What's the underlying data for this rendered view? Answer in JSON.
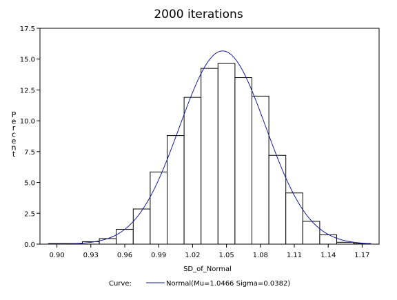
{
  "chart_data": {
    "type": "bar",
    "title": "2000 iterations",
    "xlabel": "SD_of_Normal",
    "ylabel": "Percent",
    "xlim": [
      0.885,
      1.185
    ],
    "ylim": [
      0,
      17.5
    ],
    "x_ticks": [
      "0.90",
      "0.93",
      "0.96",
      "0.99",
      "1.02",
      "1.05",
      "1.08",
      "1.11",
      "1.14",
      "1.17"
    ],
    "y_ticks": [
      "0.0",
      "2.5",
      "5.0",
      "7.5",
      "10.0",
      "12.5",
      "15.0",
      "17.5"
    ],
    "bin_width": 0.015,
    "bin_centers": [
      0.9,
      0.915,
      0.93,
      0.945,
      0.96,
      0.975,
      0.99,
      1.005,
      1.02,
      1.035,
      1.05,
      1.065,
      1.08,
      1.095,
      1.11,
      1.125,
      1.14,
      1.155,
      1.17
    ],
    "values": [
      0.05,
      0.05,
      0.2,
      0.45,
      1.2,
      2.85,
      5.85,
      8.8,
      11.9,
      14.25,
      14.65,
      13.5,
      12.0,
      7.2,
      4.15,
      1.85,
      0.75,
      0.15,
      0.05
    ],
    "series": [
      {
        "name": "Normal(Mu=1.0466 Sigma=0.0382)",
        "type": "curve",
        "mu": 1.0466,
        "sigma": 0.0382,
        "color": "#1a1a9c"
      }
    ],
    "legend": {
      "label": "Curve:",
      "entry": "Normal(Mu=1.0466 Sigma=0.0382)",
      "placement": "bottom"
    },
    "grid": false
  }
}
